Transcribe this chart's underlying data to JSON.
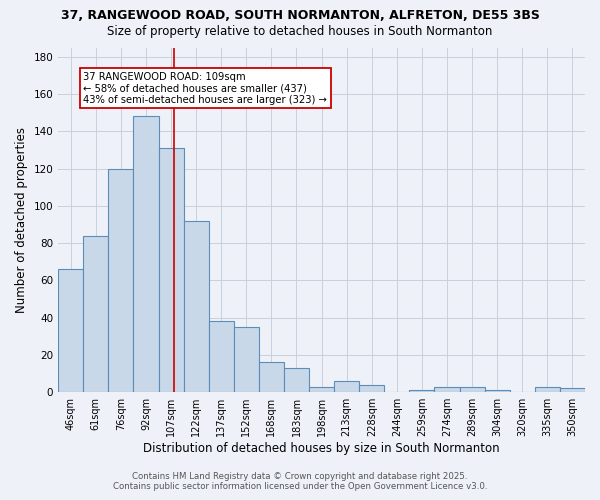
{
  "title1": "37, RANGEWOOD ROAD, SOUTH NORMANTON, ALFRETON, DE55 3BS",
  "title2": "Size of property relative to detached houses in South Normanton",
  "xlabel": "Distribution of detached houses by size in South Normanton",
  "ylabel": "Number of detached properties",
  "bar_labels": [
    "46sqm",
    "61sqm",
    "76sqm",
    "92sqm",
    "107sqm",
    "122sqm",
    "137sqm",
    "152sqm",
    "168sqm",
    "183sqm",
    "198sqm",
    "213sqm",
    "228sqm",
    "244sqm",
    "259sqm",
    "274sqm",
    "289sqm",
    "304sqm",
    "320sqm",
    "335sqm",
    "350sqm"
  ],
  "bar_values": [
    66,
    84,
    120,
    148,
    131,
    92,
    38,
    35,
    16,
    13,
    3,
    6,
    4,
    0,
    1,
    3,
    3,
    1,
    0,
    3,
    2
  ],
  "bar_color": "#c8d8e8",
  "bar_edge_color": "#5b8db8",
  "grid_color": "#c8d0dc",
  "background_color": "#eef2f8",
  "red_line_color": "#cc0000",
  "annotation_title": "37 RANGEWOOD ROAD: 109sqm",
  "annotation_line1": "← 58% of detached houses are smaller (437)",
  "annotation_line2": "43% of semi-detached houses are larger (323) →",
  "annotation_box_facecolor": "#ffffff",
  "annotation_box_edgecolor": "#cc0000",
  "footer1": "Contains HM Land Registry data © Crown copyright and database right 2025.",
  "footer2": "Contains public sector information licensed under the Open Government Licence v3.0.",
  "ylim": [
    0,
    185
  ],
  "yticks": [
    0,
    20,
    40,
    60,
    80,
    100,
    120,
    140,
    160,
    180
  ],
  "red_line_bar_index": 4
}
